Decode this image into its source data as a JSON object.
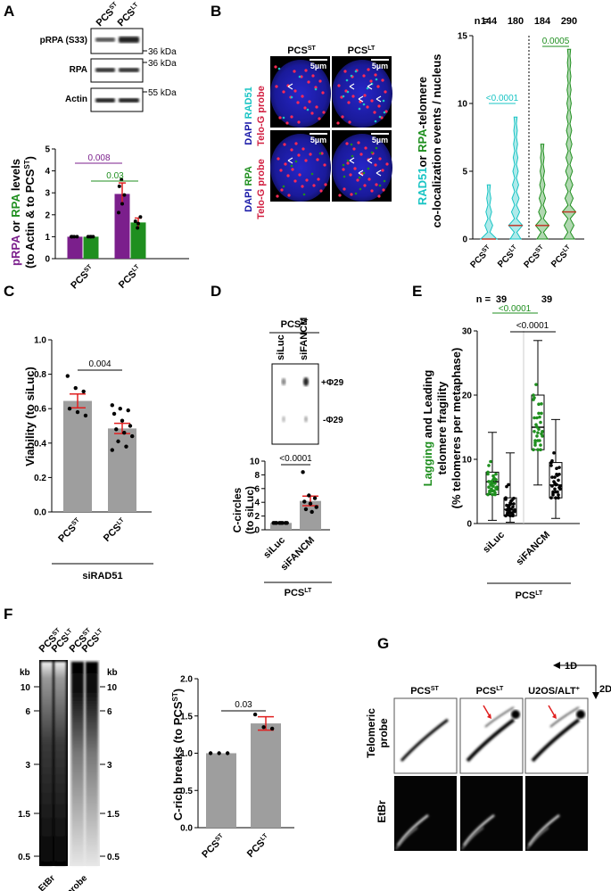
{
  "panels": {
    "A": {
      "letter": "A",
      "samples": [
        "PCS",
        "PCS"
      ],
      "sample_sup": [
        "ST",
        "LT"
      ],
      "blots": [
        "pRPA (S33)",
        "RPA",
        "Actin"
      ],
      "markers": [
        "36 kDa",
        "36 kDa",
        "55 kDa"
      ],
      "ylabel_parts": [
        "pRPA",
        " or ",
        "RPA",
        " levels"
      ],
      "ylabel2": "(to Actin & to PCS",
      "ylabel2_sup": "ST",
      "ylabel2_end": ")"
    },
    "B": {
      "letter": "B",
      "samples": [
        "PCS",
        "PCS"
      ],
      "sample_sup": [
        "ST",
        "LT"
      ],
      "row1_labels": [
        "DAPI",
        "RAD51",
        "Telo-G probe"
      ],
      "row2_labels": [
        "DAPI",
        "RPA",
        "Telo-G probe"
      ],
      "scalebar": "5µm",
      "n_label": "n =",
      "ylabel_parts": [
        "RAD51",
        "or ",
        "RPA",
        "-telomere"
      ],
      "ylabel2": "co-localization events / nucleus"
    },
    "C": {
      "letter": "C",
      "ylabel": "Viability (to siLuc)",
      "group": "siRAD51"
    },
    "D": {
      "letter": "D",
      "header": "PCS",
      "header_sup": "LT",
      "lanes": [
        "siLuc",
        "siFANCM"
      ],
      "blot_labels": [
        "+Φ29",
        "-Φ29"
      ],
      "ylabel": "C-circles",
      "ylabel2": "(to siLuc)",
      "group": "PCS",
      "group_sup": "LT"
    },
    "E": {
      "letter": "E",
      "n_label": "n =",
      "ylabel_parts": [
        "Lagging",
        " and Leading"
      ],
      "ylabel2": "telomere fragility",
      "ylabel3": "(% telomeres per metaphase)",
      "group": "PCS",
      "group_sup": "LT"
    },
    "F": {
      "letter": "F",
      "kb": "kb",
      "kb_ticks": [
        "10",
        "6",
        "3",
        "1.5",
        "0.5"
      ],
      "lanes": [
        "PCS",
        "PCS",
        "PCS",
        "PCS"
      ],
      "lane_sup": [
        "ST",
        "LT",
        "ST",
        "LT"
      ],
      "gel_labels": [
        "EtBr",
        "TeloG probe"
      ],
      "ylabel": "C-rich breaks (to PCS",
      "ylabel_sup": "ST",
      "ylabel_end": ")"
    },
    "G": {
      "letter": "G",
      "columns": [
        "PCS",
        "PCS",
        "U2OS/ALT"
      ],
      "column_sup": [
        "ST",
        "LT",
        "+"
      ],
      "rows": [
        "Telomeric",
        "probe",
        "EtBr"
      ],
      "dims": [
        "1D",
        "2D"
      ]
    }
  },
  "chart_data": [
    {
      "panel": "A",
      "type": "bar",
      "categories": [
        "PCS^ST",
        "PCS^LT"
      ],
      "series": [
        {
          "name": "pRPA",
          "color": "#7b1f8c",
          "values": [
            1.0,
            2.95
          ],
          "err": [
            0,
            0.5
          ],
          "points": [
            [
              1,
              1,
              1,
              1
            ],
            [
              2.1,
              3.6,
              2.9,
              3.3,
              2.5
            ]
          ]
        },
        {
          "name": "RPA",
          "color": "#1f8f1f",
          "values": [
            1.0,
            1.65
          ],
          "err": [
            0,
            0.2
          ],
          "points": [
            [
              1,
              1,
              1,
              1
            ],
            [
              1.4,
              1.9,
              1.7,
              1.6
            ]
          ]
        }
      ],
      "ylim": [
        0,
        5
      ],
      "yticks": [
        0,
        1,
        2,
        3,
        4,
        5
      ],
      "pvalues": [
        {
          "label": "0.008",
          "color": "#7b1f8c"
        },
        {
          "label": "0.03",
          "color": "#1f8f1f"
        }
      ]
    },
    {
      "panel": "B",
      "type": "violin",
      "categories": [
        "PCS^ST",
        "PCS^LT",
        "PCS^ST",
        "PCS^LT"
      ],
      "n": [
        "144",
        "180",
        "184",
        "290"
      ],
      "series_colors": [
        "#19c4c4",
        "#19c4c4",
        "#1f8f1f",
        "#1f8f1f"
      ],
      "medians": [
        0,
        1,
        1,
        2
      ],
      "maxima": [
        4,
        9,
        7,
        14
      ],
      "ylim": [
        0,
        15
      ],
      "yticks": [
        0,
        5,
        10,
        15
      ],
      "pvalues": [
        {
          "label": "<0.0001",
          "color": "#19c4c4"
        },
        {
          "label": "0.0005",
          "color": "#1f8f1f"
        }
      ]
    },
    {
      "panel": "C",
      "type": "bar",
      "categories": [
        "PCS^ST",
        "PCS^LT"
      ],
      "values": [
        0.645,
        0.485
      ],
      "err": [
        0.04,
        0.03
      ],
      "points": [
        [
          0.79,
          0.72,
          0.7,
          0.6,
          0.58,
          0.56
        ],
        [
          0.62,
          0.6,
          0.59,
          0.57,
          0.53,
          0.5,
          0.48,
          0.46,
          0.44,
          0.41,
          0.38,
          0.36
        ]
      ],
      "ylim": [
        0,
        1.0
      ],
      "yticks": [
        0.0,
        0.2,
        0.4,
        0.6,
        0.8,
        1.0
      ],
      "pvalue": "0.004"
    },
    {
      "panel": "D",
      "type": "bar",
      "categories": [
        "siLuc",
        "siFANCM"
      ],
      "values": [
        1.0,
        4.2
      ],
      "err": [
        0,
        0.7
      ],
      "points": [
        [
          1,
          1,
          1,
          1,
          1,
          1,
          1,
          1
        ],
        [
          8.4,
          5.0,
          4.6,
          4.1,
          3.8,
          3.3,
          3.0,
          2.6
        ]
      ],
      "ylim": [
        0,
        10
      ],
      "yticks": [
        0,
        2,
        4,
        6,
        8,
        10
      ],
      "pvalue": "<0.0001"
    },
    {
      "panel": "E",
      "type": "box",
      "categories": [
        "siLuc",
        "siLuc",
        "siFANCM",
        "siFANCM"
      ],
      "n": [
        "39",
        "39"
      ],
      "boxes": [
        {
          "name": "Lagging",
          "color": "#1f8f1f",
          "min": 0.5,
          "q1": 4.5,
          "median": 6.5,
          "q3": 8.0,
          "max": 14.2
        },
        {
          "name": "Leading",
          "color": "#000000",
          "min": 0.2,
          "q1": 1.2,
          "median": 2.2,
          "q3": 4.0,
          "max": 11.0
        },
        {
          "name": "Lagging",
          "color": "#1f8f1f",
          "min": 6.0,
          "q1": 11.5,
          "median": 15.0,
          "q3": 20.0,
          "max": 28.5
        },
        {
          "name": "Leading",
          "color": "#000000",
          "min": 0.8,
          "q1": 4.0,
          "median": 6.0,
          "q3": 9.5,
          "max": 16.2
        }
      ],
      "ylim": [
        0,
        30
      ],
      "yticks": [
        0,
        10,
        20,
        30
      ],
      "pvalues": [
        {
          "label": "<0.0001",
          "color": "#1f8f1f"
        },
        {
          "label": "<0.0001",
          "color": "#000000"
        }
      ]
    },
    {
      "panel": "F",
      "type": "bar",
      "categories": [
        "PCS^ST",
        "PCS^LT"
      ],
      "values": [
        1.0,
        1.4
      ],
      "err": [
        0,
        0.09
      ],
      "points": [
        [
          1,
          1,
          1
        ],
        [
          1.52,
          1.35,
          1.33
        ]
      ],
      "ylim": [
        0,
        2.0
      ],
      "yticks": [
        0.0,
        0.5,
        1.0,
        1.5,
        2.0
      ],
      "pvalue": "0.03"
    }
  ]
}
